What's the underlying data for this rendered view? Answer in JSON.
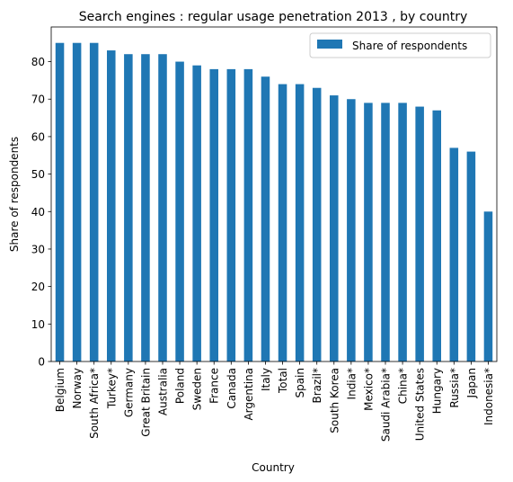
{
  "chart_data": {
    "type": "bar",
    "title": "Search engines : regular usage penetration 2013 , by country",
    "xlabel": "Country",
    "ylabel": "Share of respondents",
    "ylim": [
      0,
      89.25
    ],
    "yticks": [
      0,
      10,
      20,
      30,
      40,
      50,
      60,
      70,
      80
    ],
    "grid": false,
    "legend_position": "top-right",
    "categories": [
      "Belgium",
      "Norway",
      "South Africa*",
      "Turkey*",
      "Germany",
      "Great Britain",
      "Australia",
      "Poland",
      "Sweden",
      "France",
      "Canada",
      "Argentina",
      "Italy",
      "Total",
      "Spain",
      "Brazil*",
      "South Korea",
      "India*",
      "Mexico*",
      "Saudi Arabia*",
      "China*",
      "United States",
      "Hungary",
      "Russia*",
      "Japan",
      "Indonesia*"
    ],
    "series": [
      {
        "name": "Share of respondents",
        "color": "#1f77b4",
        "values": [
          85,
          85,
          85,
          83,
          82,
          82,
          82,
          80,
          79,
          78,
          78,
          78,
          76,
          74,
          74,
          73,
          71,
          70,
          69,
          69,
          69,
          68,
          67,
          57,
          56,
          40
        ]
      }
    ]
  }
}
